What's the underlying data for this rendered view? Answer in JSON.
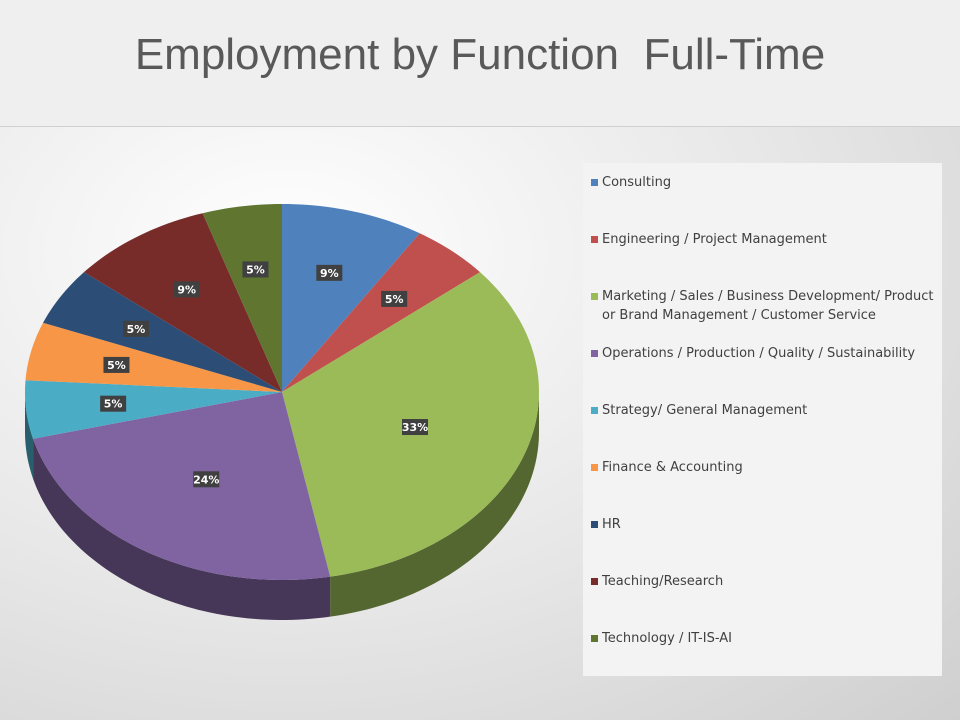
{
  "chart_data": {
    "type": "pie",
    "title": "Employment by Function  Full-Time",
    "categories": [
      "Consulting",
      "Engineering / Project Management",
      "Marketing / Sales / Business Development/ Product or Brand Management / Customer Service",
      "Operations / Production / Quality / Sustainability",
      "Strategy/ General Management",
      "Finance & Accounting",
      "HR",
      "Teaching/Research",
      "Technology / IT-IS-AI"
    ],
    "values": [
      9,
      5,
      33,
      24,
      5,
      5,
      5,
      9,
      5
    ],
    "value_labels": [
      "9%",
      "5%",
      "33%",
      "24%",
      "5%",
      "5%",
      "5%",
      "9%",
      "5%"
    ],
    "colors": [
      "#4f81bd",
      "#c0504d",
      "#9bbb59",
      "#8064a2",
      "#4bacc6",
      "#f79646",
      "#2c4d75",
      "#772c2a",
      "#5f7530"
    ],
    "legend": "right"
  }
}
